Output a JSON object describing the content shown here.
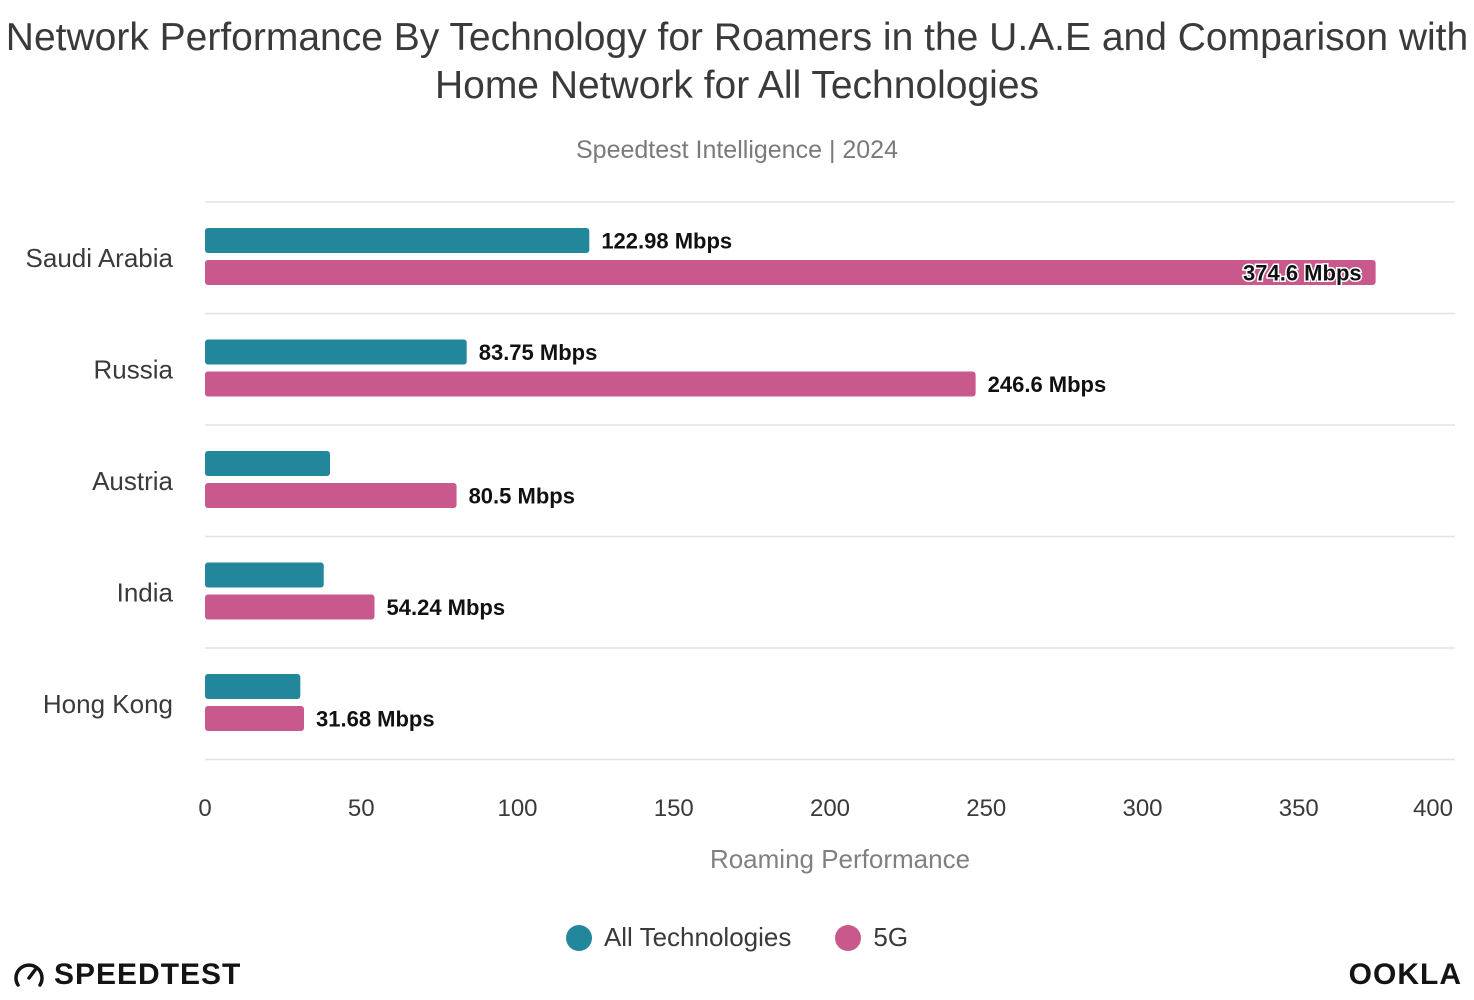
{
  "chart_data": {
    "type": "bar",
    "orientation": "horizontal",
    "title": "Network Performance By Technology for Roamers in the U.A.E and Comparison with Home Network for All Technologies",
    "subtitle": "Speedtest Intelligence | 2024",
    "xlabel": "Roaming Performance",
    "ylabel": "",
    "xlim": [
      0,
      400
    ],
    "xticks": [
      0,
      50,
      100,
      150,
      200,
      250,
      300,
      350,
      400
    ],
    "grid": true,
    "legend_position": "bottom",
    "categories": [
      "Saudi Arabia",
      "Russia",
      "Austria",
      "India",
      "Hong Kong"
    ],
    "series": [
      {
        "name": "All Technologies",
        "color": "#23879c",
        "values": [
          122.98,
          83.75,
          40,
          38,
          30.5
        ],
        "labels": [
          "122.98 Mbps",
          "83.75 Mbps",
          "",
          "",
          ""
        ]
      },
      {
        "name": "5G",
        "color": "#c9598d",
        "values": [
          374.6,
          246.6,
          80.5,
          54.24,
          31.68
        ],
        "labels": [
          "374.6 Mbps",
          "246.6 Mbps",
          "80.5 Mbps",
          "54.24 Mbps",
          "31.68 Mbps"
        ]
      }
    ]
  },
  "footer": {
    "left_brand": "SPEEDTEST",
    "right_brand": "OOKLA"
  }
}
